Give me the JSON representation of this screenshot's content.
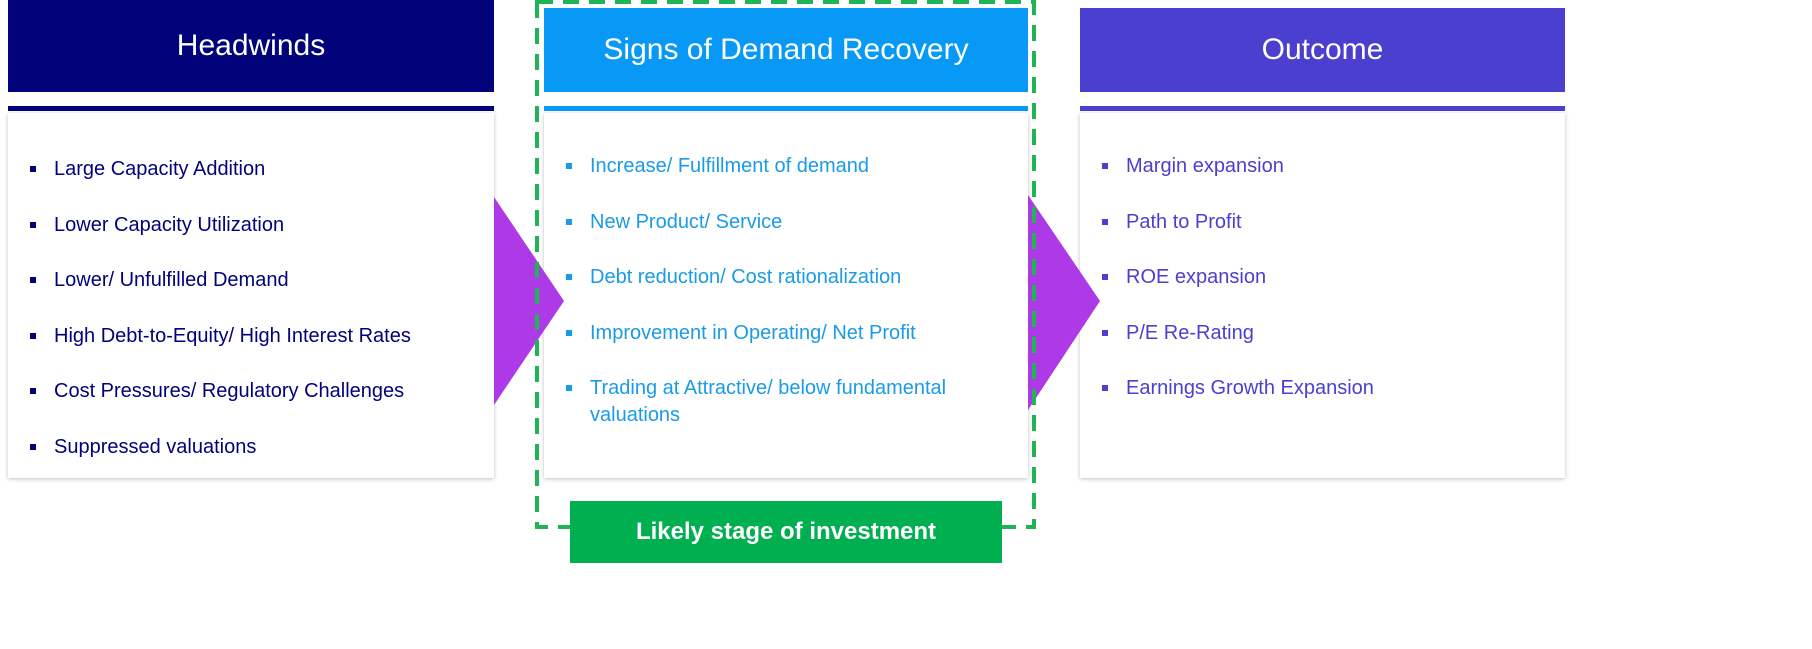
{
  "columns": [
    {
      "title": "Headwinds",
      "items": [
        "Large Capacity Addition",
        "Lower Capacity Utilization",
        "Lower/ Unfulfilled Demand",
        "High Debt-to-Equity/ High Interest Rates",
        "Cost Pressures/ Regulatory Challenges",
        "Suppressed valuations"
      ]
    },
    {
      "title": "Signs of Demand Recovery",
      "items": [
        "Increase/ Fulfillment of demand",
        "New Product/ Service",
        "Debt reduction/ Cost rationalization",
        "Improvement in Operating/ Net Profit",
        "Trading at Attractive/ below fundamental valuations"
      ]
    },
    {
      "title": "Outcome",
      "items": [
        "Margin expansion",
        "Path to Profit",
        "ROE expansion",
        "P/E Re-Rating",
        "Earnings Growth Expansion"
      ]
    }
  ],
  "stage_label": "Likely stage of investment"
}
